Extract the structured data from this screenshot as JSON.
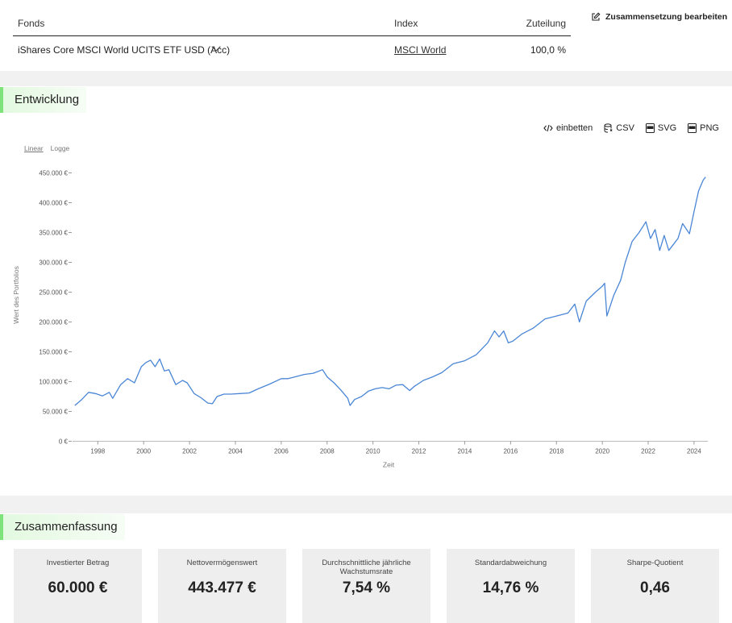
{
  "fund_table": {
    "headers": {
      "fund": "Fonds",
      "index": "Index",
      "allocation": "Zuteilung"
    },
    "rows": [
      {
        "fund": "iShares Core MSCI World UCITS ETF USD (Acc)",
        "index": "MSCI World",
        "allocation": "100,0 %"
      }
    ],
    "edit_label": "Zusammensetzung bearbeiten"
  },
  "development": {
    "title": "Entwicklung",
    "toolbar": {
      "embed": "einbetten",
      "csv": "CSV",
      "svg": "SVG",
      "png": "PNG"
    },
    "scale": {
      "linear": "Linear",
      "log": "Logge"
    },
    "icon_names": [
      "code-icon",
      "database-icon",
      "svg-file-icon",
      "png-file-icon",
      "edit-icon"
    ],
    "line_color": "#4a86d6"
  },
  "chart_data": {
    "type": "line",
    "xlabel": "Zeit",
    "ylabel": "Wert des Portfolios",
    "xlim": [
      1996.9,
      2024.6
    ],
    "ylim": [
      0,
      450000
    ],
    "x_ticks": [
      1998,
      2000,
      2002,
      2004,
      2006,
      2008,
      2010,
      2012,
      2014,
      2016,
      2018,
      2020,
      2022,
      2024
    ],
    "y_ticks": [
      0,
      50000,
      100000,
      150000,
      200000,
      250000,
      300000,
      350000,
      400000,
      450000
    ],
    "y_tick_labels": [
      "0 €",
      "50.000 €",
      "100.000 €",
      "150.000 €",
      "200.000 €",
      "250.000 €",
      "300.000 €",
      "350.000 €",
      "400.000 €",
      "450.000 €"
    ],
    "grid": false,
    "series": [
      {
        "x": [
          1997.0,
          1997.3,
          1997.6,
          1997.9,
          1998.2,
          1998.5,
          1998.65,
          1998.8,
          1999.0,
          1999.3,
          1999.6,
          1999.9,
          2000.1,
          2000.3,
          2000.5,
          2000.7,
          2000.9,
          2001.1,
          2001.4,
          2001.7,
          2001.9,
          2002.2,
          2002.5,
          2002.8,
          2003.0,
          2003.2,
          2003.5,
          2003.8,
          2004.2,
          2004.6,
          2005.0,
          2005.5,
          2006.0,
          2006.3,
          2006.6,
          2007.0,
          2007.4,
          2007.8,
          2008.0,
          2008.3,
          2008.6,
          2008.9,
          2009.0,
          2009.2,
          2009.5,
          2009.8,
          2010.1,
          2010.4,
          2010.7,
          2011.0,
          2011.3,
          2011.6,
          2011.8,
          2012.2,
          2012.6,
          2013.0,
          2013.5,
          2014.0,
          2014.5,
          2015.0,
          2015.3,
          2015.5,
          2015.7,
          2015.9,
          2016.1,
          2016.5,
          2017.0,
          2017.5,
          2018.0,
          2018.5,
          2018.8,
          2019.0,
          2019.3,
          2019.7,
          2020.0,
          2020.1,
          2020.2,
          2020.5,
          2020.8,
          2021.0,
          2021.3,
          2021.6,
          2021.9,
          2022.1,
          2022.3,
          2022.5,
          2022.7,
          2022.9,
          2023.1,
          2023.3,
          2023.5,
          2023.8,
          2024.0,
          2024.2,
          2024.4,
          2024.5
        ],
        "values": [
          60000,
          70000,
          82000,
          80000,
          76000,
          82000,
          72000,
          82000,
          95000,
          105000,
          98000,
          125000,
          132000,
          136000,
          125000,
          138000,
          118000,
          120000,
          95000,
          102000,
          98000,
          80000,
          73000,
          64000,
          63000,
          75000,
          79000,
          79000,
          80000,
          81000,
          88000,
          96000,
          105000,
          105000,
          108000,
          112000,
          114000,
          120000,
          108000,
          98000,
          86000,
          72000,
          60000,
          70000,
          75000,
          84000,
          88000,
          90000,
          88000,
          94000,
          95000,
          85000,
          92000,
          102000,
          108000,
          115000,
          130000,
          135000,
          145000,
          165000,
          185000,
          175000,
          185000,
          165000,
          168000,
          180000,
          190000,
          205000,
          210000,
          215000,
          230000,
          200000,
          235000,
          250000,
          260000,
          265000,
          210000,
          245000,
          270000,
          300000,
          335000,
          350000,
          368000,
          340000,
          355000,
          320000,
          345000,
          320000,
          330000,
          340000,
          365000,
          348000,
          385000,
          420000,
          438000,
          443000
        ]
      }
    ]
  },
  "summary": {
    "title": "Zusammenfassung",
    "tiles": [
      {
        "label": "Investierter Betrag",
        "value": "60.000 €"
      },
      {
        "label": "Nettovermögenswert",
        "value": "443.477 €"
      },
      {
        "label": "Durchschnittliche jährliche Wachstumsrate",
        "value": "7,54 %"
      },
      {
        "label": "Standardabweichung",
        "value": "14,76 %"
      },
      {
        "label": "Sharpe-Quotient",
        "value": "0,46"
      }
    ]
  }
}
